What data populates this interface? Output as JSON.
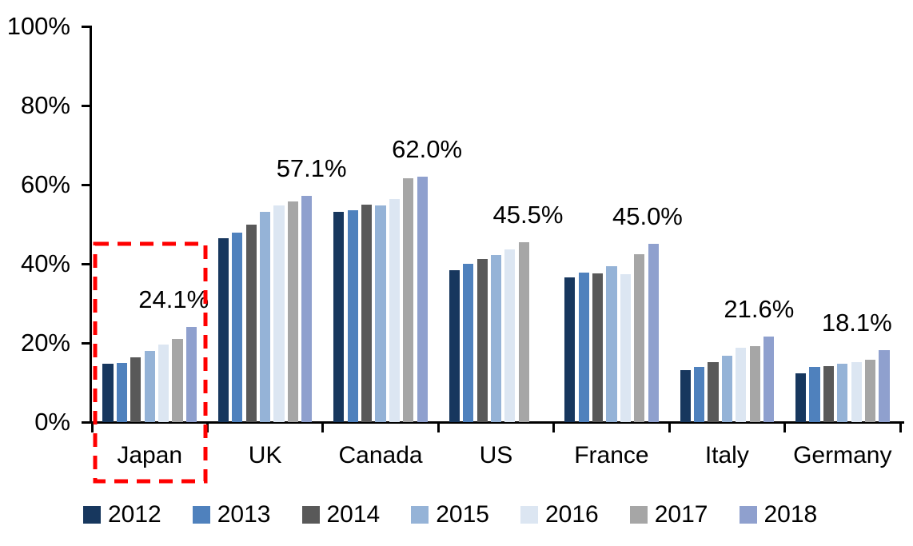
{
  "chart_data": {
    "type": "bar",
    "title": "",
    "xlabel": "",
    "ylabel": "",
    "ylim": [
      0,
      100
    ],
    "grid": false,
    "legend_position": "bottom",
    "y_tick_labels": [
      "0%",
      "20%",
      "40%",
      "60%",
      "80%",
      "100%"
    ],
    "categories": [
      "Japan",
      "UK",
      "Canada",
      "US",
      "France",
      "Italy",
      "Germany"
    ],
    "series": [
      {
        "name": "2012",
        "color": "#17375E",
        "values": [
          14.7,
          46.4,
          53.1,
          38.3,
          36.5,
          13.2,
          12.4
        ]
      },
      {
        "name": "2013",
        "color": "#4F81BD",
        "values": [
          15.0,
          47.9,
          53.6,
          40.0,
          37.7,
          14.0,
          13.9
        ]
      },
      {
        "name": "2014",
        "color": "#595959",
        "values": [
          16.4,
          49.9,
          55.0,
          41.3,
          37.6,
          15.2,
          14.2
        ]
      },
      {
        "name": "2015",
        "color": "#95B3D7",
        "values": [
          17.9,
          53.2,
          54.8,
          42.3,
          39.3,
          16.8,
          14.7
        ]
      },
      {
        "name": "2016",
        "color": "#DCE6F2",
        "values": [
          19.6,
          54.7,
          56.4,
          43.7,
          37.3,
          18.8,
          15.2
        ]
      },
      {
        "name": "2017",
        "color": "#A6A6A6",
        "values": [
          21.0,
          55.8,
          61.6,
          45.5,
          42.4,
          19.1,
          15.7
        ]
      },
      {
        "name": "2018",
        "color": "#8FA0CE",
        "values": [
          24.1,
          57.1,
          62.0,
          null,
          45.0,
          21.6,
          18.1
        ]
      }
    ],
    "data_labels": [
      "24.1%",
      "57.1%",
      "62.0%",
      "45.5%",
      "45.0%",
      "21.6%",
      "18.1%"
    ],
    "annotations": {
      "highlight_box": {
        "target_category": "Japan",
        "color": "#FF0000",
        "style": "dashed"
      }
    },
    "axis_color": "#000000",
    "background_color": "#FFFFFF"
  }
}
